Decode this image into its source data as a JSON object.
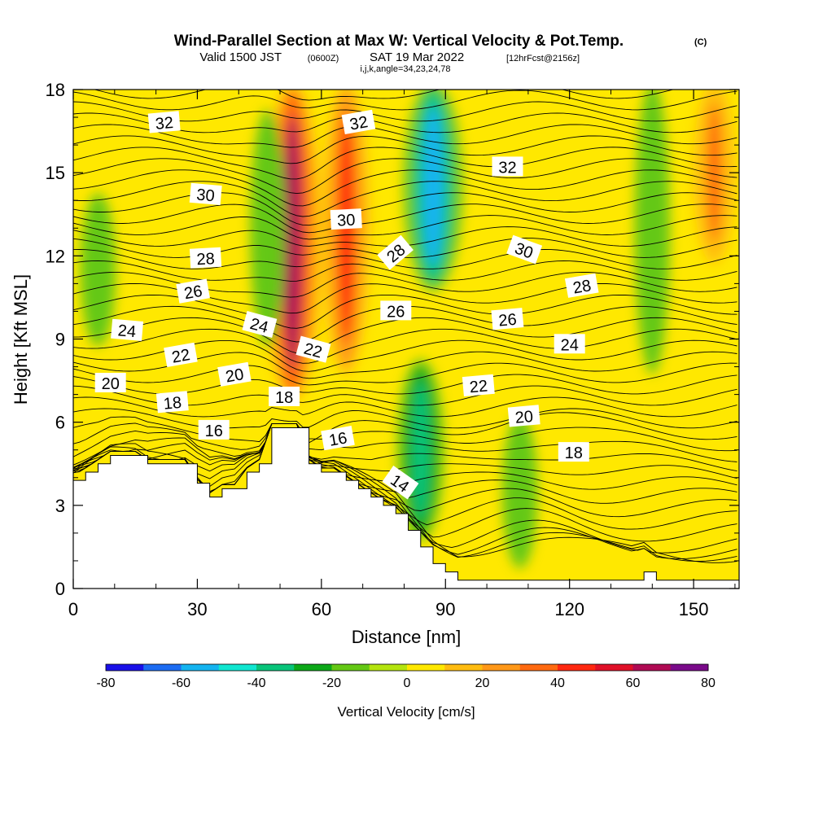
{
  "title": {
    "main": "Wind-Parallel Section at Max W: Vertical Velocity & Pot.Temp.",
    "copyright": "(C)",
    "valid_prefix": "Valid 1500 JST",
    "valid_utc": "(0600Z)",
    "valid_date": "SAT 19 Mar 2022",
    "forecast": "[12hrFcst@2156z]",
    "indices": "i,j,k,angle=34,23,24,78"
  },
  "chart_data": {
    "type": "heatmap",
    "xlabel": "Distance [nm]",
    "ylabel": "Height [Kft MSL]",
    "xlim": [
      0,
      161
    ],
    "ylim": [
      0,
      18
    ],
    "xticks": [
      "0",
      "30",
      "60",
      "90",
      "120",
      "150"
    ],
    "yticks": [
      "0",
      "3",
      "6",
      "9",
      "12",
      "15",
      "18"
    ],
    "colorbar": {
      "label": "Vertical Velocity [cm/s]",
      "levels": [
        -80,
        -70,
        -60,
        -50,
        -40,
        -30,
        -20,
        -10,
        0,
        10,
        20,
        30,
        40,
        50,
        60,
        70,
        80
      ],
      "tick_labels": [
        "-80",
        "-60",
        "-40",
        "-20",
        "0",
        "20",
        "40",
        "60",
        "80"
      ],
      "colors": [
        "#1a10e8",
        "#1c6cf2",
        "#14b4f0",
        "#10e6d0",
        "#08c47a",
        "#0ca818",
        "#64c814",
        "#b4e40e",
        "#ffe800",
        "#ffbc10",
        "#ff9818",
        "#ff6a10",
        "#ff2810",
        "#e01028",
        "#b00a54",
        "#7a0a8a"
      ]
    },
    "velocity_features": [
      {
        "x": 53,
        "y_range": [
          7,
          18
        ],
        "w": 60
      },
      {
        "x": 66,
        "y_range": [
          8,
          18
        ],
        "w": 40
      },
      {
        "x": 87,
        "y_range": [
          11,
          18
        ],
        "w": -60
      },
      {
        "x": 84,
        "y_range": [
          2,
          8
        ],
        "w": -40
      },
      {
        "x": 108,
        "y_range": [
          1,
          6
        ],
        "w": -20
      },
      {
        "x": 140,
        "y_range": [
          8,
          18
        ],
        "w": -20
      },
      {
        "x": 6,
        "y_range": [
          9,
          14
        ],
        "w": -20
      },
      {
        "x": 47,
        "y_range": [
          9,
          17
        ],
        "w": -20
      },
      {
        "x": 155,
        "y_range": [
          12,
          18
        ],
        "w": 30
      }
    ],
    "theta_contours": {
      "units": "deg C",
      "label_values": [
        "32",
        "32",
        "32",
        "30",
        "30",
        "30",
        "28",
        "28",
        "28",
        "26",
        "26",
        "26",
        "24",
        "24",
        "24",
        "22",
        "22",
        "22",
        "20",
        "20",
        "20",
        "18",
        "18",
        "18",
        "16",
        "16",
        "14"
      ]
    },
    "terrain": {
      "x": [
        0,
        3,
        6,
        9,
        12,
        15,
        18,
        21,
        24,
        27,
        30,
        33,
        36,
        39,
        42,
        45,
        48,
        51,
        54,
        57,
        60,
        63,
        66,
        69,
        72,
        75,
        78,
        81,
        84,
        87,
        90,
        93,
        96,
        99,
        102,
        105,
        108,
        111,
        114,
        117,
        120,
        123,
        126,
        129,
        132,
        135,
        138,
        141,
        144,
        147,
        150,
        153,
        156,
        159,
        161
      ],
      "h": [
        3.9,
        4.2,
        4.5,
        4.8,
        4.8,
        4.8,
        4.5,
        4.5,
        4.5,
        4.5,
        3.8,
        3.3,
        3.6,
        3.6,
        4.2,
        4.5,
        5.8,
        5.8,
        5.8,
        4.5,
        4.2,
        4.2,
        3.9,
        3.6,
        3.3,
        3.0,
        2.7,
        2.1,
        1.5,
        0.9,
        0.6,
        0.3,
        0.3,
        0.3,
        0.3,
        0.3,
        0.3,
        0.3,
        0.3,
        0.3,
        0.3,
        0.3,
        0.3,
        0.3,
        0.3,
        0.3,
        0.6,
        0.3,
        0.3,
        0.3,
        0.3,
        0.3,
        0.3,
        0.3,
        0.3
      ]
    }
  }
}
